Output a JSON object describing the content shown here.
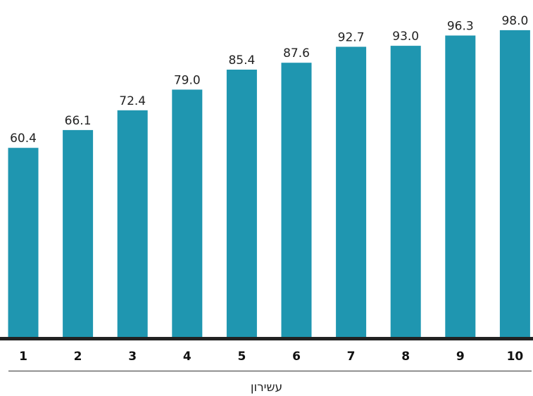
{
  "chart_data": {
    "type": "bar",
    "categories": [
      "1",
      "2",
      "3",
      "4",
      "5",
      "6",
      "7",
      "8",
      "9",
      "10"
    ],
    "values": [
      60.4,
      66.1,
      72.4,
      79.0,
      85.4,
      87.6,
      92.7,
      93.0,
      96.3,
      98.0
    ],
    "value_labels": [
      "60.4",
      "66.1",
      "72.4",
      "79.0",
      "85.4",
      "87.6",
      "92.7",
      "93.0",
      "96.3",
      "98.0"
    ],
    "title": "",
    "xlabel": "עשירון",
    "ylabel": "",
    "ylim": [
      0,
      100
    ],
    "grid": false,
    "colors": {
      "bar": "#1f96b0",
      "baseline": "#222222",
      "divider": "#333333"
    }
  }
}
